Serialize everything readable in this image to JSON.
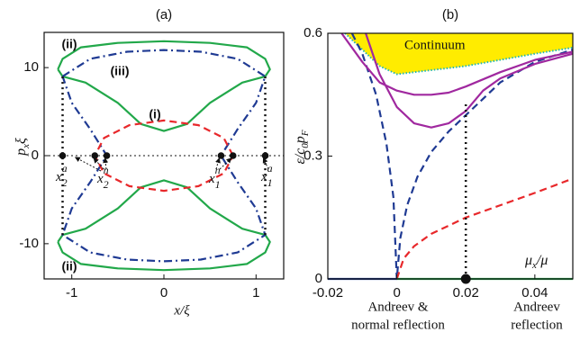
{
  "chart_data": [
    {
      "type": "line",
      "title": "(a)",
      "xlabel": "x/ξ",
      "ylabel": [
        "p",
        "x",
        "ξ"
      ],
      "xlim": [
        -1.3,
        1.3
      ],
      "ylim": [
        -14,
        14
      ],
      "xticks": [
        -1,
        0,
        1
      ],
      "yticks": [
        -10,
        0,
        10
      ],
      "zero_line": true,
      "series": [
        {
          "color": "#22a84a",
          "dash": "solid",
          "x": [
            -1.15,
            -1.1,
            -0.9,
            -0.5,
            0,
            0.5,
            0.9,
            1.1,
            1.15,
            1.1,
            0.85,
            0.5,
            0.25,
            0,
            -0.25,
            -0.5,
            -0.85,
            -1.1,
            -1.15
          ],
          "values": [
            9.8,
            11,
            12.3,
            12.8,
            13,
            12.8,
            12.3,
            11,
            9.8,
            9,
            8.3,
            6,
            3.6,
            2.8,
            3.6,
            6,
            8.3,
            9,
            9.8
          ]
        },
        {
          "color": "#22a84a",
          "dash": "solid",
          "x": [
            -1.15,
            -1.1,
            -0.9,
            -0.5,
            0,
            0.5,
            0.9,
            1.1,
            1.15,
            1.1,
            0.85,
            0.5,
            0.25,
            0,
            -0.25,
            -0.5,
            -0.85,
            -1.1,
            -1.15
          ],
          "values": [
            -9.8,
            -11,
            -12.3,
            -12.8,
            -13,
            -12.8,
            -12.3,
            -11,
            -9.8,
            -9,
            -8.3,
            -6,
            -3.6,
            -2.8,
            -3.6,
            -6,
            -8.3,
            -9,
            -9.8
          ]
        },
        {
          "color": "#1f3a93",
          "dash": "dashdot",
          "x": [
            -1.1,
            -0.8,
            -0.4,
            0,
            0.4,
            0.8,
            1.1,
            1.0,
            0.8,
            0.62,
            0.8,
            1.0,
            1.1,
            0.8,
            0.4,
            0,
            -0.4,
            -0.8,
            -1.1,
            -1.0,
            -0.8,
            -0.62,
            -0.8,
            -1.0,
            -1.1
          ],
          "values": [
            9,
            11,
            11.8,
            12,
            11.8,
            11,
            9,
            6,
            3,
            0,
            -3,
            -6,
            -9,
            -11,
            -11.8,
            -12,
            -11.8,
            -11,
            -9,
            -6,
            -3,
            0,
            3,
            6,
            9
          ]
        },
        {
          "color": "#e8282b",
          "dash": "dashed",
          "x": [
            0.75,
            0.65,
            0.375,
            0,
            -0.375,
            -0.65,
            -0.75,
            -0.65,
            -0.375,
            0,
            0.375,
            0.65,
            0.75
          ],
          "values": [
            0,
            2,
            3.46,
            4,
            3.46,
            2,
            0,
            -2,
            -3.46,
            -4,
            -3.46,
            -2,
            0
          ]
        },
        {
          "color": "#111111",
          "dash": "dotted",
          "x": [
            -1.1,
            -1.1
          ],
          "values": [
            -9,
            9
          ]
        },
        {
          "color": "#111111",
          "dash": "dotted",
          "x": [
            1.1,
            1.1
          ],
          "values": [
            -9,
            9
          ]
        }
      ],
      "points": {
        "color": "#111111",
        "x": [
          -1.1,
          -0.75,
          -0.62,
          0.62,
          0.75,
          1.1
        ],
        "values": [
          0,
          0,
          0,
          0,
          0,
          0
        ]
      },
      "annotations": [
        "(ii)",
        "(iii)",
        "(i)",
        "(ii)"
      ],
      "point_labels": [
        {
          "base": "x",
          "sub": "2",
          "sup": "a"
        },
        {
          "base": "x",
          "sub": "2",
          "sup": "n"
        },
        {
          "base": "x",
          "sub": "1",
          "sup": "n"
        },
        {
          "base": "x",
          "sub": "1",
          "sup": "a"
        }
      ]
    },
    {
      "type": "line",
      "title": "(b)",
      "xlabel": [
        "μ",
        "x",
        "/μ"
      ],
      "ylabel": [
        "ε/c",
        "0",
        "p",
        "F"
      ],
      "xlim": [
        -0.02,
        0.051
      ],
      "ylim": [
        0,
        0.6
      ],
      "xticks": [
        -0.02,
        0,
        0.02,
        0.04
      ],
      "yticks": [
        0,
        0.3,
        0.6
      ],
      "continuum": {
        "label": "Continuum",
        "color": "#ffec00",
        "edge_color": "#22b5b5",
        "x": [
          -0.015,
          -0.01,
          -0.005,
          0,
          0.005,
          0.01,
          0.02,
          0.03,
          0.04,
          0.051
        ],
        "values": [
          0.6,
          0.56,
          0.52,
          0.5,
          0.505,
          0.51,
          0.52,
          0.535,
          0.55,
          0.565
        ]
      },
      "series": [
        {
          "color": "#1f3a93",
          "dash": "dashed",
          "x": [
            -0.013,
            -0.01,
            -0.006,
            -0.003,
            -0.001,
            0,
            0.001,
            0.003,
            0.006,
            0.01,
            0.015,
            0.02,
            0.025,
            0.03,
            0.04,
            0.051
          ],
          "values": [
            0.6,
            0.55,
            0.45,
            0.33,
            0.2,
            0,
            0.1,
            0.18,
            0.25,
            0.31,
            0.36,
            0.4,
            0.44,
            0.48,
            0.53,
            0.56
          ]
        },
        {
          "color": "#a0289f",
          "dash": "solid",
          "x": [
            -0.016,
            -0.01,
            -0.005,
            0,
            0.005,
            0.01,
            0.015,
            0.02,
            0.03,
            0.04,
            0.051
          ],
          "values": [
            0.6,
            0.53,
            0.48,
            0.46,
            0.45,
            0.45,
            0.455,
            0.47,
            0.505,
            0.535,
            0.555
          ]
        },
        {
          "color": "#a0289f",
          "dash": "solid",
          "x": [
            -0.009,
            -0.005,
            0,
            0.005,
            0.01,
            0.015,
            0.02,
            0.022,
            0.025,
            0.03,
            0.04,
            0.051
          ],
          "values": [
            0.6,
            0.5,
            0.42,
            0.38,
            0.37,
            0.38,
            0.41,
            0.43,
            0.46,
            0.49,
            0.525,
            0.55
          ]
        },
        {
          "color": "#e8282b",
          "dash": "dashed",
          "x": [
            0,
            0.002,
            0.005,
            0.01,
            0.02,
            0.03,
            0.04,
            0.051
          ],
          "values": [
            0,
            0.05,
            0.08,
            0.11,
            0.15,
            0.18,
            0.21,
            0.245
          ]
        },
        {
          "color": "#1f3a93",
          "dash": "solid",
          "x": [
            -0.02,
            0
          ],
          "values": [
            0,
            0
          ]
        },
        {
          "color": "#22a84a",
          "dash": "solid",
          "x": [
            0,
            0.051
          ],
          "values": [
            0,
            0
          ]
        },
        {
          "color": "#111111",
          "dash": "dotted",
          "x": [
            0.02,
            0.02
          ],
          "values": [
            0,
            0.43
          ]
        }
      ],
      "points": {
        "color": "#111111",
        "x": [
          0.02
        ],
        "values": [
          0
        ]
      },
      "notes": [
        "Andreev &",
        "normal reflection",
        "Andreev",
        "reflection"
      ]
    }
  ]
}
